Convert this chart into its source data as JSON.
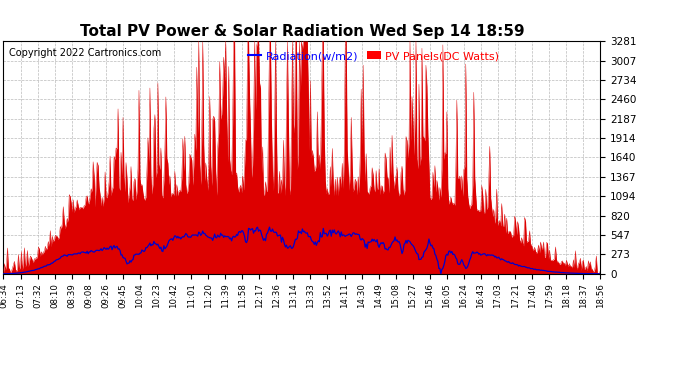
{
  "title": "Total PV Power & Solar Radiation Wed Sep 14 18:59",
  "copyright": "Copyright 2022 Cartronics.com",
  "legend_radiation": "Radiation(w/m2)",
  "legend_pv": "PV Panels(DC Watts)",
  "legend_radiation_color": "blue",
  "legend_pv_color": "red",
  "yticks": [
    0.0,
    273.4,
    546.8,
    820.2,
    1093.6,
    1367.0,
    1640.4,
    1913.8,
    2187.2,
    2460.5,
    2733.9,
    3007.3,
    3280.7
  ],
  "ymax": 3280.7,
  "ymin": 0.0,
  "pv_color": "#dd0000",
  "radiation_color": "#0000cc",
  "background_color": "white",
  "grid_color": "#bbbbbb",
  "grid_linestyle": "--",
  "title_fontsize": 11,
  "copyright_fontsize": 7,
  "xtick_labels": [
    "06:34",
    "07:13",
    "07:32",
    "08:10",
    "08:39",
    "09:08",
    "09:26",
    "09:45",
    "10:04",
    "10:23",
    "10:42",
    "11:01",
    "11:20",
    "11:39",
    "11:58",
    "12:17",
    "12:36",
    "13:14",
    "13:33",
    "13:52",
    "14:11",
    "14:30",
    "14:49",
    "15:08",
    "15:27",
    "15:46",
    "16:05",
    "16:24",
    "16:43",
    "17:03",
    "17:21",
    "17:40",
    "17:59",
    "18:18",
    "18:37",
    "18:56"
  ],
  "n_points": 600
}
